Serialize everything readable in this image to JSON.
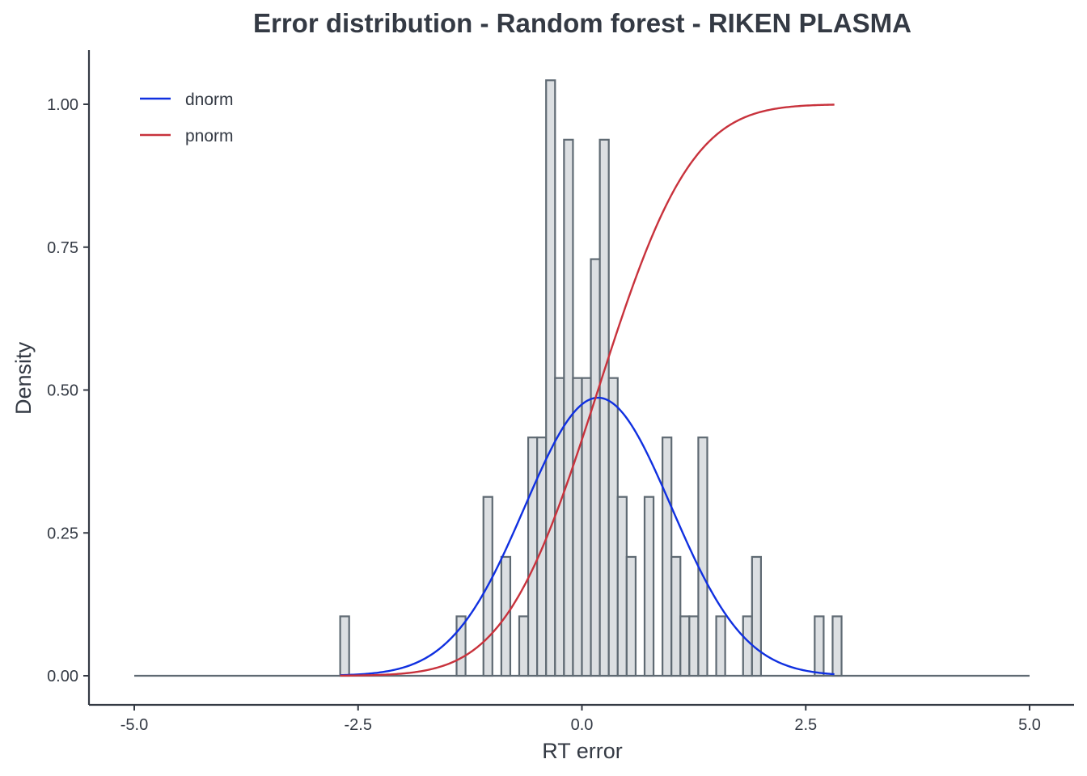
{
  "chart_data": {
    "type": "bar",
    "title": "Error distribution - Random forest - RIKEN PLASMA",
    "xlabel": "RT error",
    "ylabel": "Density",
    "xlim": [
      -5.0,
      5.0
    ],
    "ylim": [
      0,
      1.05
    ],
    "x_ticks": [
      "-5.0",
      "-2.5",
      "0.0",
      "2.5",
      "5.0"
    ],
    "y_ticks": [
      "0.00",
      "0.25",
      "0.50",
      "0.75",
      "1.00"
    ],
    "grid": false,
    "legend_position": "top-left",
    "histogram": {
      "bin_width": 0.1,
      "bins": [
        {
          "x0": -2.7,
          "density": 0.104
        },
        {
          "x0": -1.4,
          "density": 0.104
        },
        {
          "x0": -1.1,
          "density": 0.313
        },
        {
          "x0": -0.9,
          "density": 0.208
        },
        {
          "x0": -0.7,
          "density": 0.104
        },
        {
          "x0": -0.6,
          "density": 0.417
        },
        {
          "x0": -0.5,
          "density": 0.417
        },
        {
          "x0": -0.4,
          "density": 1.042
        },
        {
          "x0": -0.3,
          "density": 0.521
        },
        {
          "x0": -0.2,
          "density": 0.938
        },
        {
          "x0": -0.1,
          "density": 0.521
        },
        {
          "x0": 0.0,
          "density": 0.521
        },
        {
          "x0": 0.1,
          "density": 0.729
        },
        {
          "x0": 0.2,
          "density": 0.938
        },
        {
          "x0": 0.3,
          "density": 0.521
        },
        {
          "x0": 0.4,
          "density": 0.313
        },
        {
          "x0": 0.5,
          "density": 0.208
        },
        {
          "x0": 0.7,
          "density": 0.313
        },
        {
          "x0": 0.9,
          "density": 0.417
        },
        {
          "x0": 1.0,
          "density": 0.208
        },
        {
          "x0": 1.1,
          "density": 0.104
        },
        {
          "x0": 1.2,
          "density": 0.104
        },
        {
          "x0": 1.3,
          "density": 0.417
        },
        {
          "x0": 1.5,
          "density": 0.104
        },
        {
          "x0": 1.8,
          "density": 0.104
        },
        {
          "x0": 1.9,
          "density": 0.208
        },
        {
          "x0": 2.6,
          "density": 0.104
        },
        {
          "x0": 2.8,
          "density": 0.104
        }
      ],
      "fill": "#dcdfe2",
      "stroke": "#5f6a73"
    },
    "baseline": {
      "x_from": -5.0,
      "x_to": 5.0
    },
    "series": [
      {
        "name": "dnorm",
        "kind": "normal_pdf",
        "mean": 0.18,
        "sd": 0.82,
        "x_range": [
          -2.7,
          2.82
        ],
        "color": "#1030e0"
      },
      {
        "name": "pnorm",
        "kind": "normal_cdf",
        "mean": 0.18,
        "sd": 0.82,
        "x_range": [
          -2.7,
          2.82
        ],
        "color": "#c8323c"
      }
    ]
  }
}
